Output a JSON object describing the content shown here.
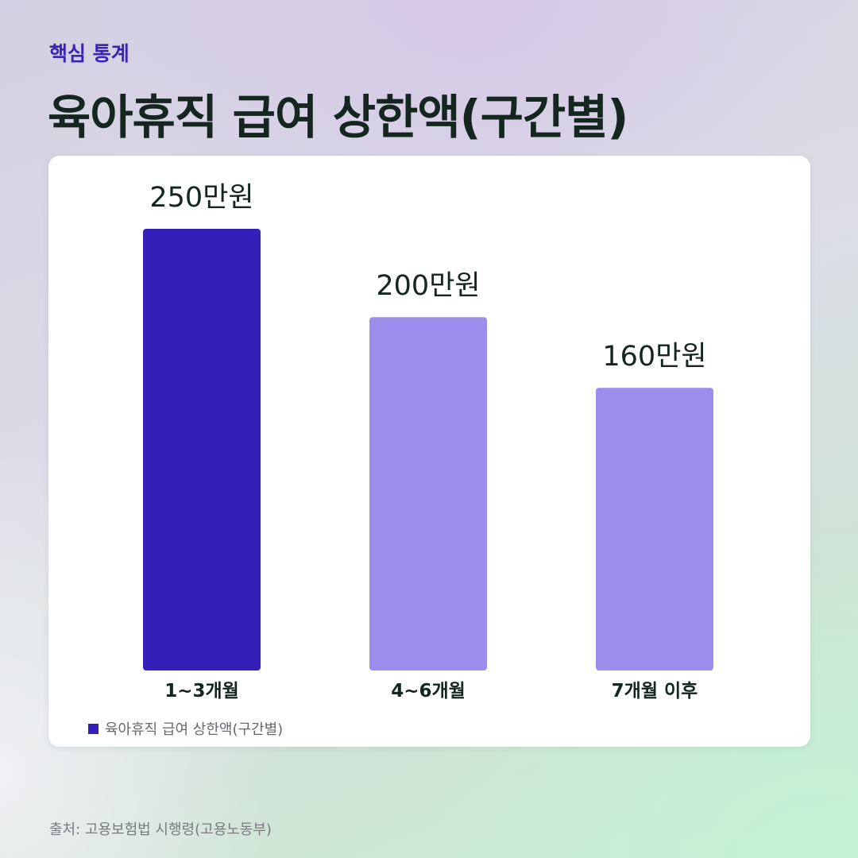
{
  "eyebrow": "핵심 통계",
  "title": "육아휴직 급여 상한액(구간별)",
  "source": "출처: 고용보험법 시행령(고용노동부)",
  "colors": {
    "highlight_bar": "#3320b8",
    "bar": "#9b8deb",
    "text_dark": "#14261f",
    "accent": "#3a24b8"
  },
  "chart_data": {
    "type": "bar",
    "categories": [
      "1~3개월",
      "4~6개월",
      "7개월 이후"
    ],
    "series": [
      {
        "name": "육아휴직 급여 상한액(구간별)",
        "values": [
          250,
          200,
          160
        ]
      }
    ],
    "value_labels": [
      "250만원",
      "200만원",
      "160만원"
    ],
    "highlight_index": 0,
    "ylim": [
      0,
      250
    ],
    "grid": false,
    "legend": "bottom-left"
  }
}
